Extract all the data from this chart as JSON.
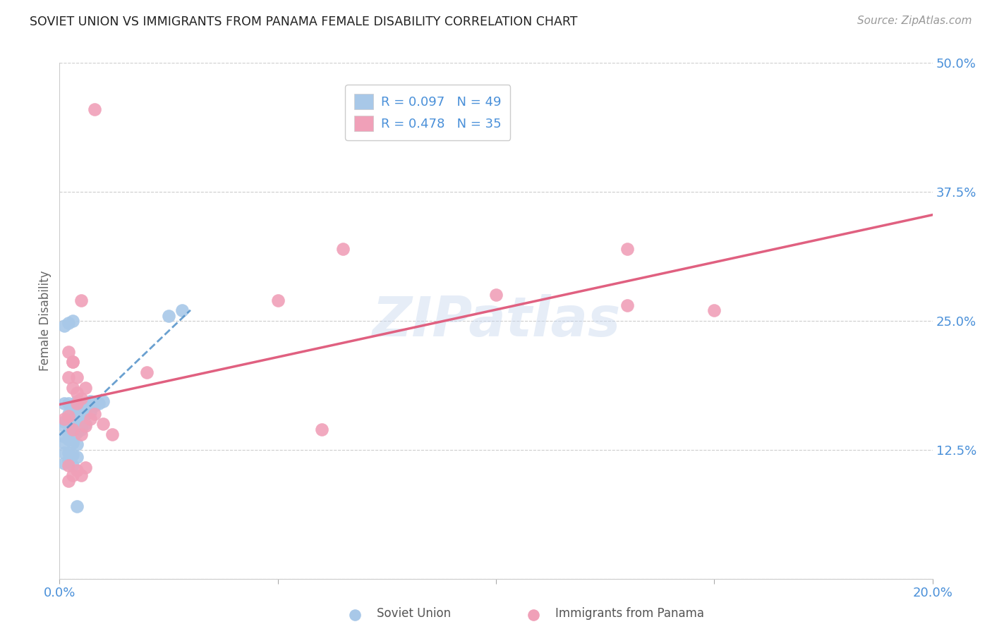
{
  "title": "SOVIET UNION VS IMMIGRANTS FROM PANAMA FEMALE DISABILITY CORRELATION CHART",
  "source": "Source: ZipAtlas.com",
  "ylabel": "Female Disability",
  "xlim": [
    0.0,
    0.2
  ],
  "ylim": [
    0.0,
    0.5
  ],
  "xticks": [
    0.0,
    0.05,
    0.1,
    0.15,
    0.2
  ],
  "yticks": [
    0.0,
    0.125,
    0.25,
    0.375,
    0.5
  ],
  "xticklabels": [
    "0.0%",
    "",
    "",
    "",
    "20.0%"
  ],
  "yticklabels": [
    "",
    "12.5%",
    "25.0%",
    "37.5%",
    "50.0%"
  ],
  "soviet_R": 0.097,
  "soviet_N": 49,
  "panama_R": 0.478,
  "panama_N": 35,
  "soviet_color": "#a8c8e8",
  "panama_color": "#f0a0b8",
  "soviet_line_color": "#5090c8",
  "panama_line_color": "#e06080",
  "watermark": "ZIPatlas",
  "soviet_x": [
    0.001,
    0.002,
    0.003,
    0.004,
    0.005,
    0.006,
    0.007,
    0.008,
    0.009,
    0.01,
    0.002,
    0.003,
    0.004,
    0.005,
    0.006,
    0.007,
    0.001,
    0.002,
    0.003,
    0.004,
    0.001,
    0.002,
    0.003,
    0.004,
    0.005,
    0.006,
    0.002,
    0.003,
    0.004,
    0.005,
    0.001,
    0.002,
    0.001,
    0.002,
    0.003,
    0.004,
    0.001,
    0.002,
    0.003,
    0.004,
    0.001,
    0.002,
    0.003,
    0.025,
    0.028,
    0.001,
    0.002,
    0.003,
    0.004
  ],
  "soviet_y": [
    0.17,
    0.17,
    0.168,
    0.172,
    0.168,
    0.17,
    0.172,
    0.168,
    0.17,
    0.172,
    0.16,
    0.162,
    0.16,
    0.162,
    0.16,
    0.162,
    0.152,
    0.155,
    0.152,
    0.155,
    0.148,
    0.15,
    0.148,
    0.15,
    0.148,
    0.15,
    0.142,
    0.145,
    0.142,
    0.145,
    0.138,
    0.14,
    0.132,
    0.135,
    0.132,
    0.13,
    0.122,
    0.122,
    0.12,
    0.118,
    0.112,
    0.114,
    0.11,
    0.255,
    0.26,
    0.245,
    0.248,
    0.25,
    0.07
  ],
  "panama_x": [
    0.001,
    0.002,
    0.003,
    0.004,
    0.005,
    0.006,
    0.007,
    0.008,
    0.003,
    0.004,
    0.005,
    0.006,
    0.002,
    0.003,
    0.002,
    0.003,
    0.004,
    0.005,
    0.05,
    0.065,
    0.1,
    0.13,
    0.02,
    0.13,
    0.15,
    0.002,
    0.002,
    0.003,
    0.004,
    0.005,
    0.006,
    0.01,
    0.012,
    0.06,
    0.008
  ],
  "panama_y": [
    0.155,
    0.158,
    0.145,
    0.17,
    0.14,
    0.148,
    0.155,
    0.16,
    0.21,
    0.195,
    0.175,
    0.185,
    0.22,
    0.21,
    0.195,
    0.185,
    0.18,
    0.27,
    0.27,
    0.32,
    0.275,
    0.32,
    0.2,
    0.265,
    0.26,
    0.11,
    0.095,
    0.1,
    0.105,
    0.1,
    0.108,
    0.15,
    0.14,
    0.145,
    0.455
  ]
}
